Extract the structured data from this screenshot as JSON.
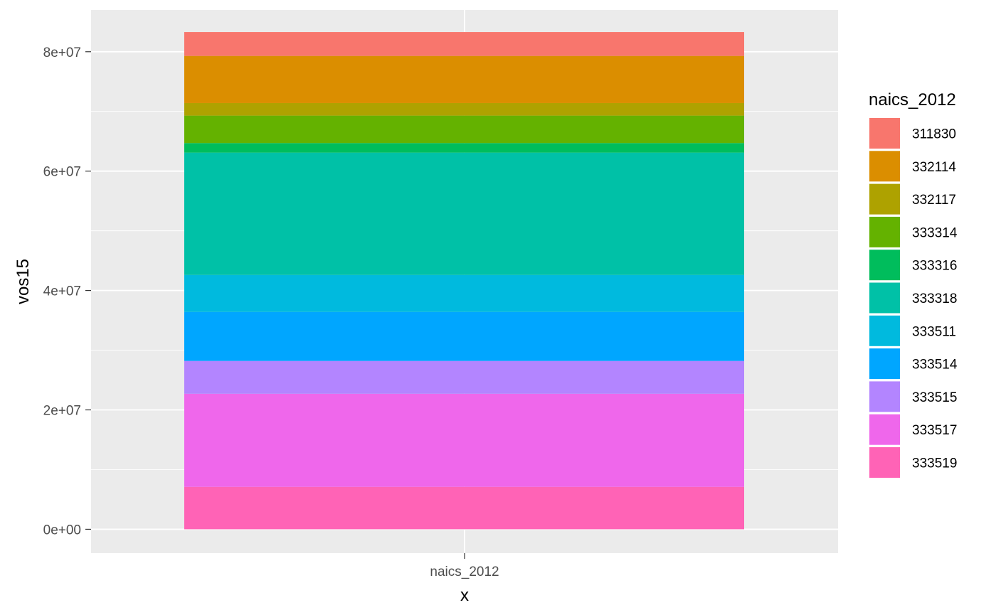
{
  "chart_data": {
    "type": "bar",
    "stacked": true,
    "categories": [
      "naics_2012"
    ],
    "xlabel": "x",
    "ylabel": "vos15",
    "ylim": [
      -4000000,
      87000000
    ],
    "yticks": [
      0,
      20000000,
      40000000,
      60000000,
      80000000
    ],
    "ytick_labels": [
      "0e+00",
      "2e+07",
      "4e+07",
      "6e+07",
      "8e+07"
    ],
    "grid": true,
    "legend": {
      "title": "naics_2012",
      "position": "right"
    },
    "series": [
      {
        "name": "311830",
        "color": "#F8766D",
        "values": [
          4000000
        ]
      },
      {
        "name": "332114",
        "color": "#DB8E00",
        "values": [
          7900000
        ]
      },
      {
        "name": "332117",
        "color": "#AEA200",
        "values": [
          2100000
        ]
      },
      {
        "name": "333314",
        "color": "#64B200",
        "values": [
          4600000
        ]
      },
      {
        "name": "333316",
        "color": "#00BD5C",
        "values": [
          1600000
        ]
      },
      {
        "name": "333318",
        "color": "#00C1A7",
        "values": [
          20500000
        ]
      },
      {
        "name": "333511",
        "color": "#00BADE",
        "values": [
          6200000
        ]
      },
      {
        "name": "333514",
        "color": "#00A6FF",
        "values": [
          8200000
        ]
      },
      {
        "name": "333515",
        "color": "#B385FF",
        "values": [
          5500000
        ]
      },
      {
        "name": "333517",
        "color": "#EF67EB",
        "values": [
          15600000
        ]
      },
      {
        "name": "333519",
        "color": "#FF63B6",
        "values": [
          7100000
        ]
      }
    ]
  }
}
